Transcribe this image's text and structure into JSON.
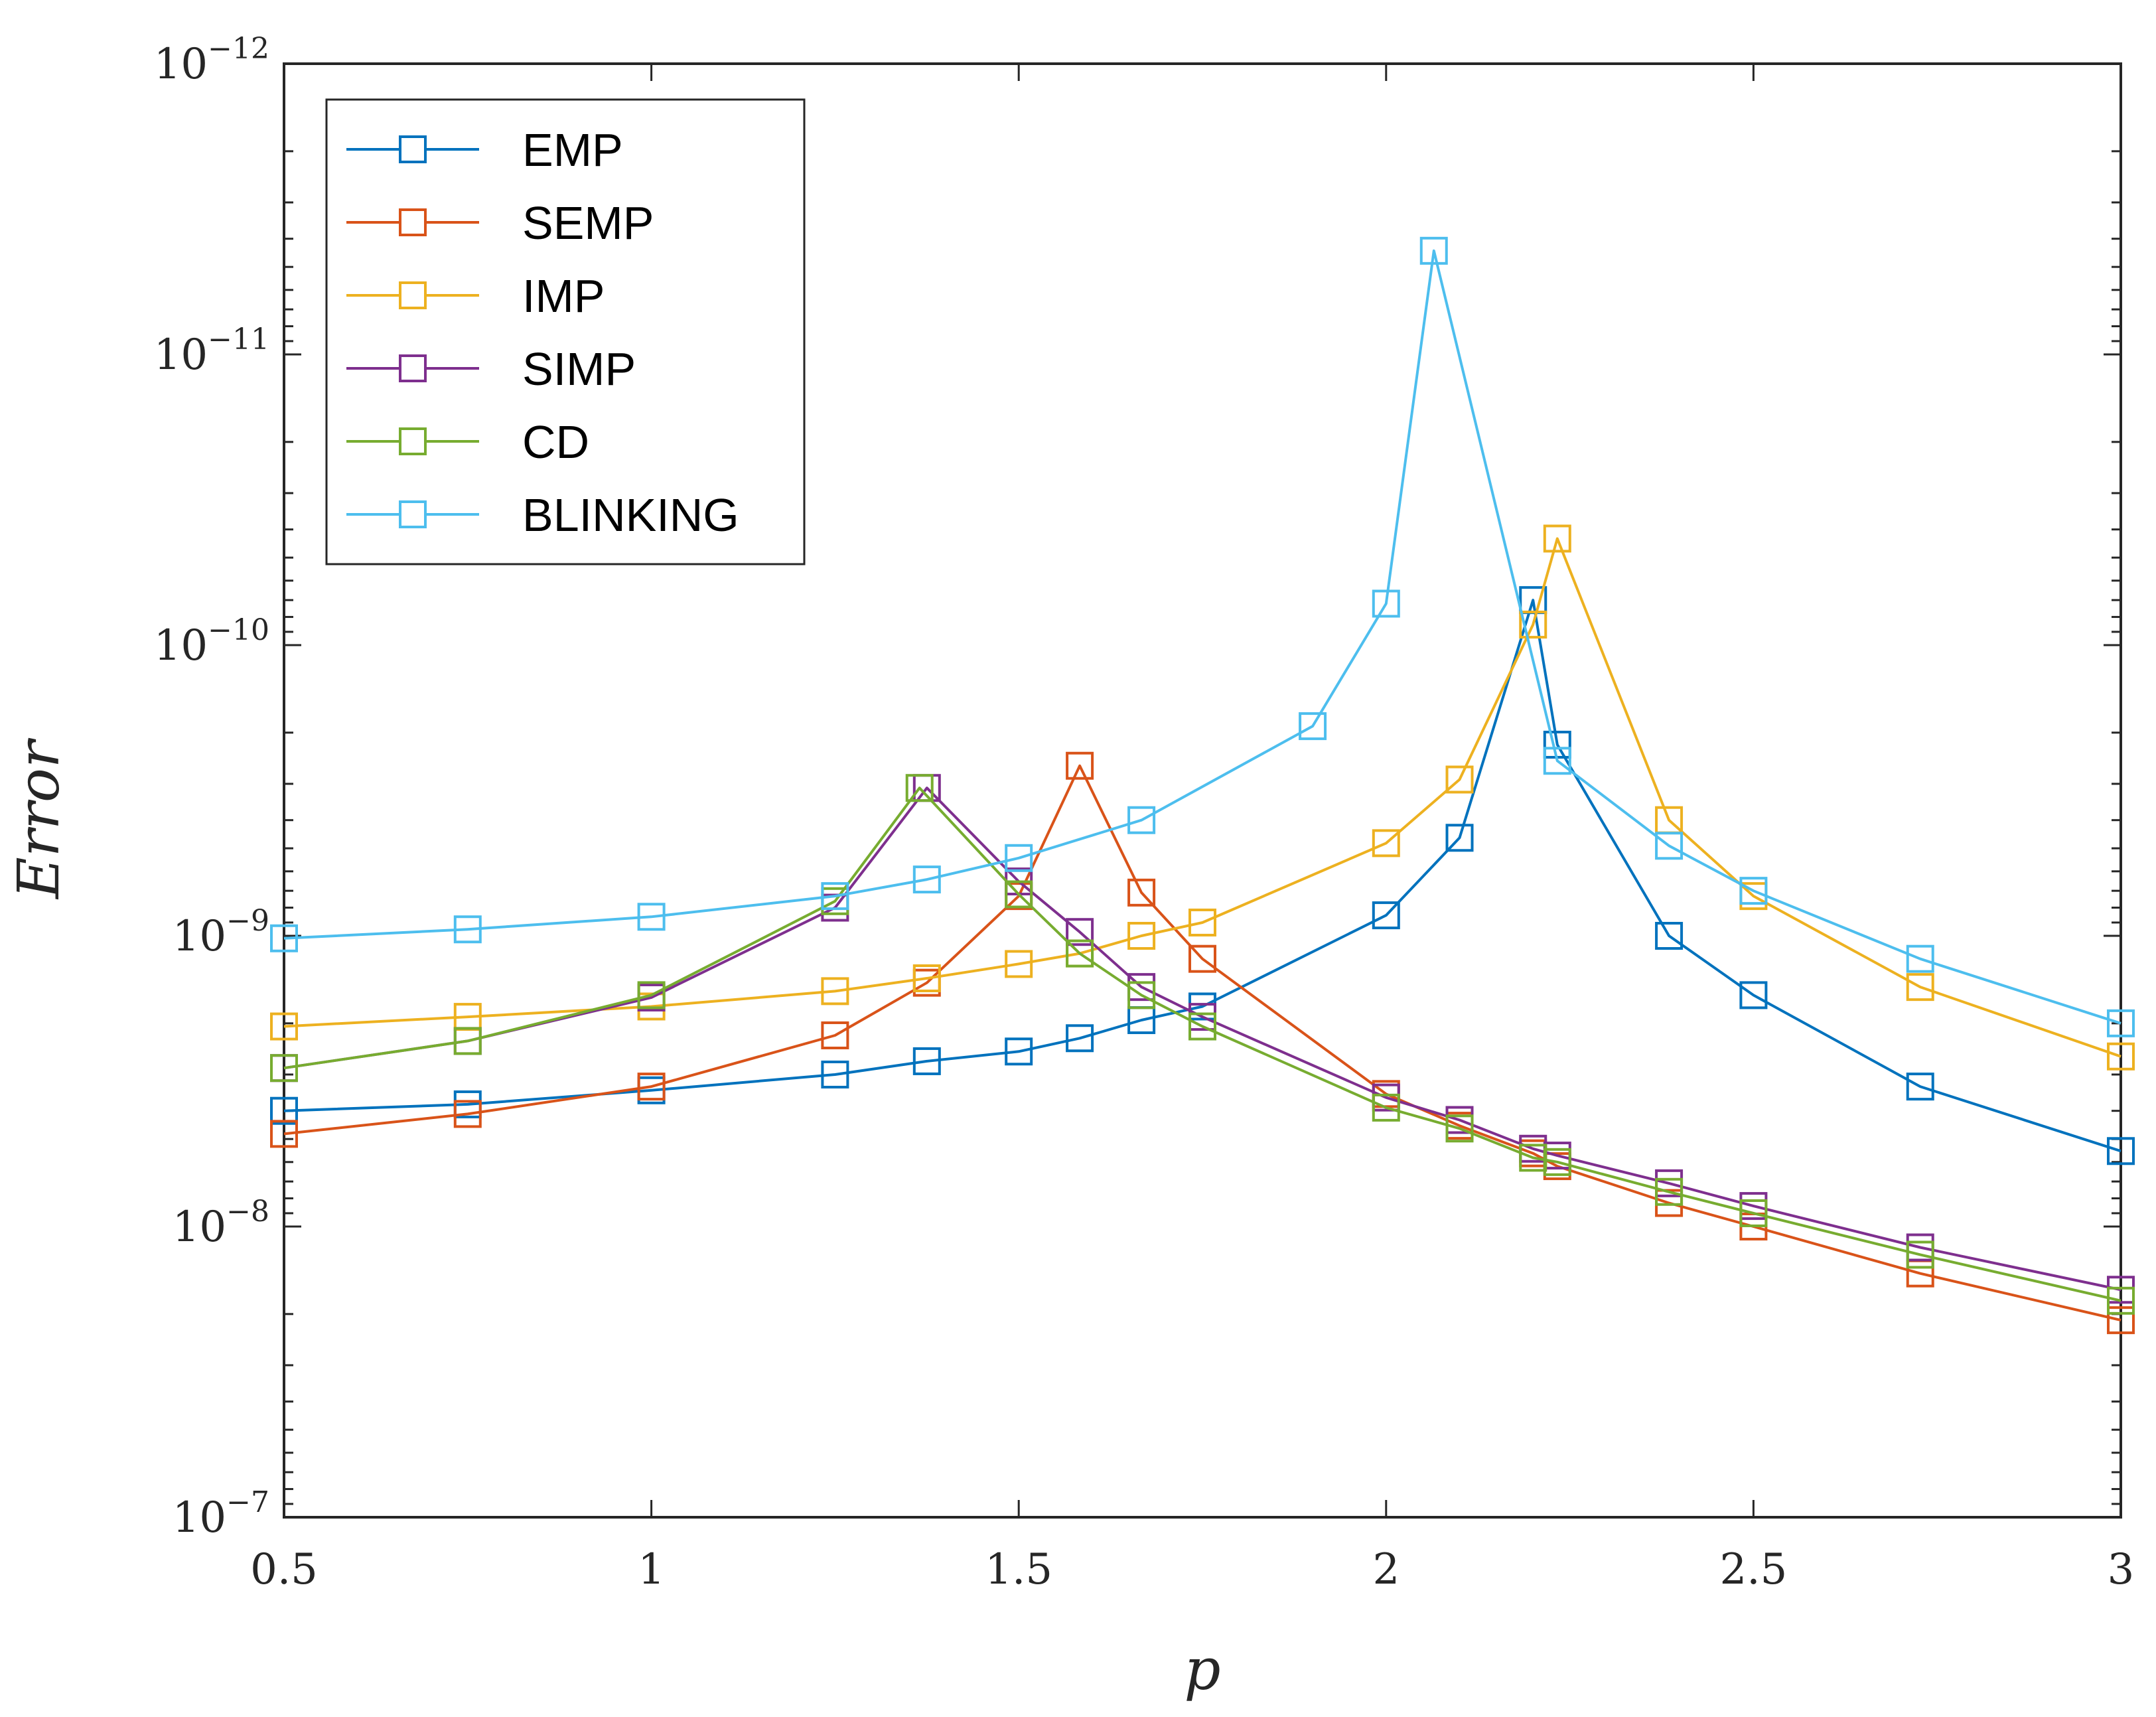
{
  "chart_data": {
    "type": "line",
    "title": "",
    "xlabel": "p",
    "ylabel": "Error",
    "xlim": [
      0.5,
      3
    ],
    "ylim_log10": [
      -12,
      -7
    ],
    "y_axis_reversed": true,
    "y_scale": "log",
    "xticks": [
      0.5,
      1,
      1.5,
      2,
      2.5,
      3
    ],
    "xtick_labels": [
      "0.5",
      "1",
      "1.5",
      "2",
      "2.5",
      "3"
    ],
    "yticks_log10": [
      -12,
      -11,
      -10,
      -9,
      -8,
      -7
    ],
    "ytick_labels": [
      {
        "base": "10",
        "exp": "−12"
      },
      {
        "base": "10",
        "exp": "−11"
      },
      {
        "base": "10",
        "exp": "−10"
      },
      {
        "base": "10",
        "exp": "−9"
      },
      {
        "base": "10",
        "exp": "−8"
      },
      {
        "base": "10",
        "exp": "−7"
      }
    ],
    "legend_position": "top-left",
    "grid": false,
    "marker": "square",
    "series": [
      {
        "name": "EMP",
        "color": "#0072BD",
        "x": [
          0.5,
          0.75,
          1.0,
          1.25,
          1.375,
          1.5,
          1.583,
          1.667,
          1.75,
          2.0,
          2.1,
          2.2,
          2.233,
          2.385,
          2.5,
          2.727,
          3.0
        ],
        "y": [
          4e-09,
          3.8e-09,
          3.4e-09,
          3e-09,
          2.7e-09,
          2.5e-09,
          2.25e-09,
          1.95e-09,
          1.75e-09,
          8.5e-10,
          4.6e-10,
          7e-11,
          2.2e-10,
          1e-09,
          1.6e-09,
          3.3e-09,
          5.5e-09
        ]
      },
      {
        "name": "SEMP",
        "color": "#D95319",
        "x": [
          0.5,
          0.75,
          1.0,
          1.25,
          1.375,
          1.5,
          1.583,
          1.667,
          1.75,
          2.0,
          2.1,
          2.2,
          2.233,
          2.385,
          2.5,
          2.727,
          3.0
        ],
        "y": [
          4.8e-09,
          4.1e-09,
          3.3e-09,
          2.2e-09,
          1.45e-09,
          7.3e-10,
          2.6e-10,
          7.1e-10,
          1.2e-09,
          3.5e-09,
          4.5e-09,
          5.6e-09,
          6.2e-09,
          8.3e-09,
          1e-08,
          1.45e-08,
          2.1e-08
        ]
      },
      {
        "name": "IMP",
        "color": "#EDB120",
        "x": [
          0.5,
          0.75,
          1.0,
          1.25,
          1.375,
          1.5,
          1.583,
          1.667,
          1.75,
          2.0,
          2.1,
          2.2,
          2.233,
          2.385,
          2.5,
          2.727,
          3.0
        ],
        "y": [
          2.05e-09,
          1.9e-09,
          1.75e-09,
          1.55e-09,
          1.4e-09,
          1.25e-09,
          1.15e-09,
          1e-09,
          9e-10,
          4.8e-10,
          2.9e-10,
          8.5e-11,
          4.3e-11,
          4e-10,
          7.3e-10,
          1.5e-09,
          2.6e-09
        ]
      },
      {
        "name": "SIMP",
        "color": "#7E2F8E",
        "x": [
          0.5,
          0.75,
          1.0,
          1.25,
          1.375,
          1.5,
          1.583,
          1.667,
          1.75,
          2.0,
          2.1,
          2.2,
          2.233,
          2.385,
          2.5,
          2.727,
          3.0
        ],
        "y": [
          2.85e-09,
          2.3e-09,
          1.63e-09,
          8e-10,
          3.1e-10,
          6.5e-10,
          9.7e-10,
          1.5e-09,
          1.9e-09,
          3.6e-09,
          4.3e-09,
          5.4e-09,
          5.7e-09,
          7.1e-09,
          8.5e-09,
          1.18e-08,
          1.65e-08
        ]
      },
      {
        "name": "CD",
        "color": "#77AC30",
        "x": [
          0.5,
          0.75,
          1.0,
          1.25,
          1.365,
          1.5,
          1.583,
          1.667,
          1.75,
          2.0,
          2.1,
          2.2,
          2.233,
          2.385,
          2.5,
          2.727,
          3.0
        ],
        "y": [
          2.85e-09,
          2.3e-09,
          1.6e-09,
          7.6e-10,
          3.1e-10,
          7.2e-10,
          1.15e-09,
          1.6e-09,
          2.05e-09,
          3.9e-09,
          4.6e-09,
          5.8e-09,
          6e-09,
          7.6e-09,
          9e-09,
          1.25e-08,
          1.8e-08
        ]
      },
      {
        "name": "BLINKING",
        "color": "#4DBEEE",
        "x": [
          0.5,
          0.75,
          1.0,
          1.25,
          1.375,
          1.5,
          1.667,
          1.9,
          2.0,
          2.065,
          2.233,
          2.385,
          2.5,
          2.727,
          3.0
        ],
        "y": [
          1.02e-09,
          9.5e-10,
          8.6e-10,
          7.3e-10,
          6.4e-10,
          5.4e-10,
          4e-10,
          1.9e-10,
          7.2e-11,
          4.4e-12,
          2.5e-10,
          4.9e-10,
          7e-10,
          1.2e-09,
          2e-09
        ]
      }
    ]
  }
}
